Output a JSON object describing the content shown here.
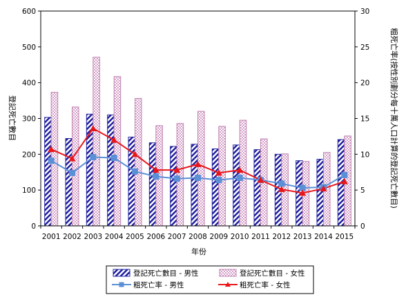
{
  "chart_data": {
    "type": "bar",
    "categories": [
      "2001",
      "2002",
      "2003",
      "2004",
      "2005",
      "2006",
      "2007",
      "2008",
      "2009",
      "2010",
      "2011",
      "2012",
      "2013",
      "2014",
      "2015"
    ],
    "xlabel": "年份",
    "ylabel": "登記死亡數目",
    "y2label": "粗死亡率(按性別劃分每十萬人口計算的登記死亡數目)",
    "ylim": [
      0,
      600
    ],
    "y2lim": [
      0,
      30
    ],
    "yticks": [
      "0",
      "100",
      "200",
      "300",
      "400",
      "500",
      "600"
    ],
    "y2ticks": [
      "0",
      "5",
      "10",
      "15",
      "20",
      "25",
      "30"
    ],
    "grid": false,
    "legend_position": "bottom",
    "series": [
      {
        "name": "登記死亡數目 - 男性",
        "kind": "bar",
        "axis": "left",
        "color": "#1f1f9f",
        "values": [
          303,
          244,
          312,
          310,
          248,
          232,
          222,
          228,
          215,
          226,
          213,
          200,
          182,
          186,
          241
        ]
      },
      {
        "name": "登記死亡數目 - 女性",
        "kind": "bar",
        "axis": "left",
        "color": "#d4a0c8",
        "values": [
          373,
          332,
          471,
          417,
          356,
          280,
          286,
          320,
          278,
          295,
          243,
          201,
          180,
          205,
          251
        ]
      },
      {
        "name": "粗死亡率 - 男性",
        "kind": "line",
        "axis": "right",
        "color": "#5b8fd6",
        "values": [
          9.1,
          7.4,
          9.6,
          9.5,
          7.6,
          6.9,
          6.6,
          6.7,
          6.4,
          6.7,
          6.4,
          5.9,
          5.3,
          5.4,
          7.1
        ]
      },
      {
        "name": "粗死亡率 - 女性",
        "kind": "line",
        "axis": "right",
        "color": "#e8161b",
        "values": [
          10.7,
          9.4,
          13.6,
          12.0,
          10.0,
          7.8,
          7.8,
          8.6,
          7.4,
          7.8,
          6.4,
          5.1,
          4.6,
          5.2,
          6.2
        ]
      }
    ]
  }
}
